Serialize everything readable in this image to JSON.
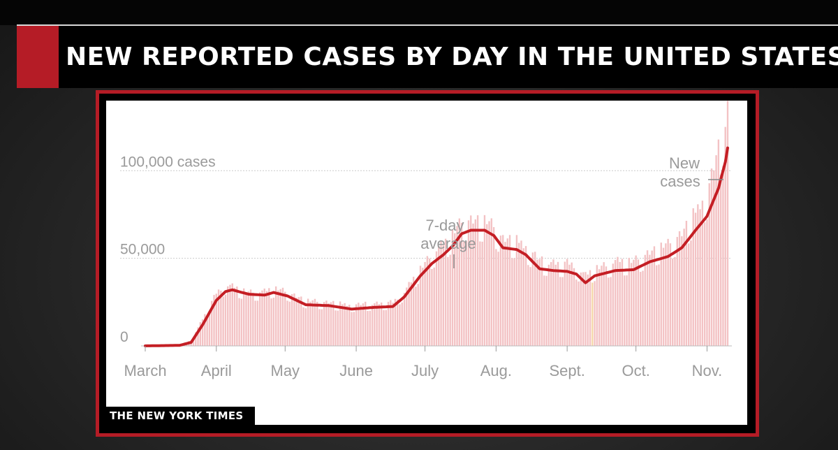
{
  "header": {
    "title": "NEW REPORTED CASES BY DAY IN THE UNITED STATES"
  },
  "footer": {
    "credit": "THE NEW YORK TIMES"
  },
  "colors": {
    "accent": "#b51c26",
    "line": "#c41e24",
    "bars": "#f3c2c4",
    "bar_highlight": "#f5d7a8",
    "grid": "#cccccc",
    "text": "#9a9a9a"
  },
  "chart_data": {
    "type": "bar",
    "title": "",
    "xlabel": "",
    "ylabel": "",
    "ylim": [
      0,
      140000
    ],
    "grid": true,
    "y_ticks": [
      {
        "value": 0,
        "label": "0"
      },
      {
        "value": 50000,
        "label": "50,000"
      },
      {
        "value": 100000,
        "label": "100,000 cases"
      }
    ],
    "x_ticks": [
      {
        "month": "March",
        "x": 0
      },
      {
        "month": "April",
        "x": 31
      },
      {
        "month": "May",
        "x": 61
      },
      {
        "month": "June",
        "x": 92
      },
      {
        "month": "July",
        "x": 122
      },
      {
        "month": "Aug.",
        "x": 153
      },
      {
        "month": "Sept.",
        "x": 184
      },
      {
        "month": "Oct.",
        "x": 214
      },
      {
        "month": "Nov.",
        "x": 245
      }
    ],
    "annotations": {
      "avg_line1": "7-day",
      "avg_line2": "average",
      "new_line1": "New",
      "new_line2": "cases"
    },
    "series": [
      {
        "name": "7-day average",
        "kind": "line",
        "points": [
          [
            0,
            0
          ],
          [
            15,
            300
          ],
          [
            20,
            2000
          ],
          [
            25,
            12000
          ],
          [
            31,
            26000
          ],
          [
            35,
            31000
          ],
          [
            38,
            32000
          ],
          [
            45,
            29500
          ],
          [
            52,
            29000
          ],
          [
            56,
            30500
          ],
          [
            62,
            28500
          ],
          [
            70,
            23500
          ],
          [
            80,
            23000
          ],
          [
            90,
            21000
          ],
          [
            100,
            22000
          ],
          [
            108,
            22500
          ],
          [
            113,
            28000
          ],
          [
            120,
            40000
          ],
          [
            125,
            47000
          ],
          [
            130,
            52000
          ],
          [
            134,
            57000
          ],
          [
            138,
            64000
          ],
          [
            142,
            66000
          ],
          [
            148,
            66000
          ],
          [
            152,
            63000
          ],
          [
            156,
            56000
          ],
          [
            162,
            55000
          ],
          [
            166,
            52000
          ],
          [
            172,
            44000
          ],
          [
            178,
            43000
          ],
          [
            184,
            42500
          ],
          [
            188,
            41000
          ],
          [
            192,
            36000
          ],
          [
            196,
            40000
          ],
          [
            205,
            43000
          ],
          [
            213,
            43500
          ],
          [
            220,
            48000
          ],
          [
            228,
            51000
          ],
          [
            234,
            56000
          ],
          [
            240,
            66000
          ],
          [
            245,
            74000
          ],
          [
            250,
            90000
          ],
          [
            253,
            105000
          ],
          [
            254,
            113000
          ]
        ]
      },
      {
        "name": "New cases",
        "kind": "bars",
        "points": [
          [
            0,
            0
          ],
          [
            15,
            400
          ],
          [
            20,
            3000
          ],
          [
            25,
            15000
          ],
          [
            31,
            29000
          ],
          [
            35,
            34000
          ],
          [
            38,
            33000
          ],
          [
            45,
            30000
          ],
          [
            52,
            30000
          ],
          [
            56,
            32000
          ],
          [
            62,
            30000
          ],
          [
            70,
            25000
          ],
          [
            80,
            24000
          ],
          [
            90,
            22500
          ],
          [
            100,
            23500
          ],
          [
            108,
            24000
          ],
          [
            113,
            30000
          ],
          [
            120,
            43000
          ],
          [
            125,
            51000
          ],
          [
            130,
            56000
          ],
          [
            134,
            62000
          ],
          [
            138,
            69000
          ],
          [
            142,
            70000
          ],
          [
            148,
            69000
          ],
          [
            152,
            66000
          ],
          [
            156,
            59000
          ],
          [
            162,
            58000
          ],
          [
            166,
            55000
          ],
          [
            172,
            47000
          ],
          [
            178,
            46000
          ],
          [
            184,
            45500
          ],
          [
            188,
            44000
          ],
          [
            192,
            39000
          ],
          [
            196,
            43000
          ],
          [
            205,
            46500
          ],
          [
            213,
            47000
          ],
          [
            220,
            52000
          ],
          [
            228,
            56000
          ],
          [
            234,
            62000
          ],
          [
            240,
            74000
          ],
          [
            245,
            84000
          ],
          [
            250,
            108000
          ],
          [
            253,
            125000
          ],
          [
            254,
            135000
          ]
        ]
      }
    ]
  }
}
